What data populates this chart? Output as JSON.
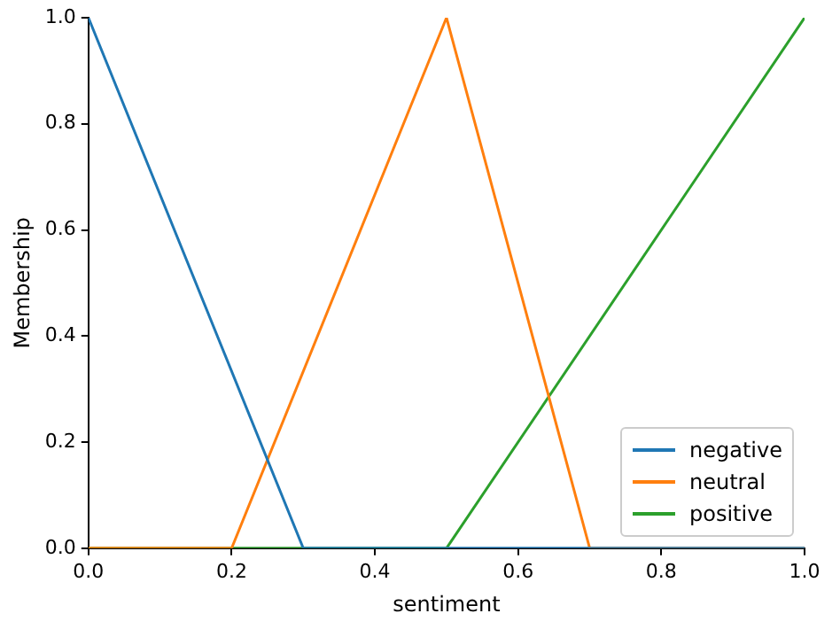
{
  "chart_data": {
    "type": "line",
    "xlabel": "sentiment",
    "ylabel": "Membership",
    "series": [
      {
        "name": "negative",
        "color": "#1f77b4",
        "x": [
          0,
          0.3,
          1
        ],
        "values": [
          1,
          0,
          0
        ]
      },
      {
        "name": "neutral",
        "color": "#ff7f0e",
        "x": [
          0,
          0.2,
          0.5,
          0.7,
          1
        ],
        "values": [
          0,
          0,
          1,
          0,
          0
        ]
      },
      {
        "name": "positive",
        "color": "#2ca02c",
        "x": [
          0,
          0.5,
          1
        ],
        "values": [
          0,
          0,
          1
        ]
      }
    ],
    "xlim": [
      0,
      1
    ],
    "ylim": [
      0,
      1
    ],
    "xticks": [
      {
        "value": 0,
        "label": "0.0"
      },
      {
        "value": 0.2,
        "label": "0.2"
      },
      {
        "value": 0.4,
        "label": "0.4"
      },
      {
        "value": 0.6,
        "label": "0.6"
      },
      {
        "value": 0.8,
        "label": "0.8"
      },
      {
        "value": 1,
        "label": "1.0"
      }
    ],
    "yticks": [
      {
        "value": 0,
        "label": "0.0"
      },
      {
        "value": 0.2,
        "label": "0.2"
      },
      {
        "value": 0.4,
        "label": "0.4"
      },
      {
        "value": 0.6,
        "label": "0.6"
      },
      {
        "value": 0.8,
        "label": "0.8"
      },
      {
        "value": 1,
        "label": "1.0"
      }
    ],
    "grid": false,
    "legend": "bottom right",
    "marker": "none",
    "line_style": "solid"
  }
}
